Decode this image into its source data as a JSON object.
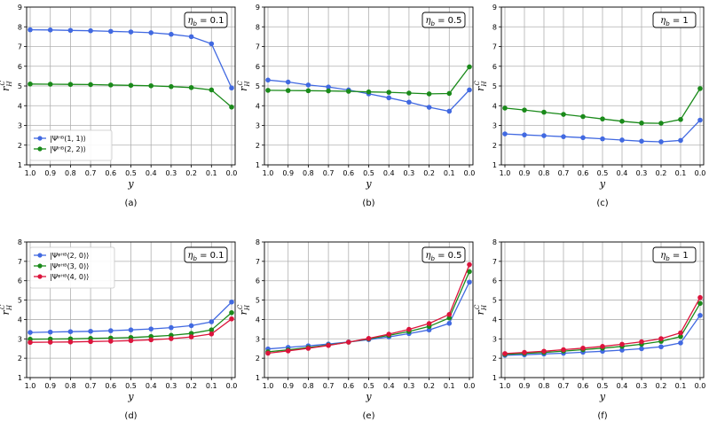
{
  "chart_data": [
    {
      "type": "line",
      "panel_label": "(a)",
      "annotation_eta_value": "0.1",
      "x": [
        1.0,
        0.9,
        0.8,
        0.7,
        0.6,
        0.5,
        0.4,
        0.3,
        0.2,
        0.1,
        0.0
      ],
      "x_tick_labels": [
        "1.0",
        "0.9",
        "0.8",
        "0.7",
        "0.6",
        "0.5",
        "0.4",
        "0.3",
        "0.2",
        "0.1",
        "0.0"
      ],
      "xlabel": "y",
      "ylabel_main": "r",
      "ylabel_sub": "H",
      "ylabel_sup": "C",
      "ylim": [
        1,
        9
      ],
      "y_ticks": [
        1,
        2,
        3,
        4,
        5,
        6,
        7,
        8,
        9
      ],
      "grid": true,
      "legend_location": "lower-left",
      "series": [
        {
          "name": "|Ψ^HB(1,1)⟩",
          "legend_label": "|Ψᴴᴮ(1, 1)⟩",
          "color": "#4169e1",
          "values": [
            7.85,
            7.84,
            7.82,
            7.8,
            7.77,
            7.74,
            7.7,
            7.62,
            7.5,
            7.14,
            4.9
          ]
        },
        {
          "name": "|Ψ^HB(2,2)⟩",
          "legend_label": "|Ψᴴᴮ(2, 2)⟩",
          "color": "#1a8a1a",
          "values": [
            5.1,
            5.09,
            5.08,
            5.07,
            5.05,
            5.03,
            5.01,
            4.97,
            4.92,
            4.8,
            3.93
          ]
        }
      ]
    },
    {
      "type": "line",
      "panel_label": "(b)",
      "annotation_eta_value": "0.5",
      "x": [
        1.0,
        0.9,
        0.8,
        0.7,
        0.6,
        0.5,
        0.4,
        0.3,
        0.2,
        0.1,
        0.0
      ],
      "x_tick_labels": [
        "1.0",
        "0.9",
        "0.8",
        "0.7",
        "0.6",
        "0.5",
        "0.4",
        "0.3",
        "0.2",
        "0.1",
        "0.0"
      ],
      "xlabel": "y",
      "ylabel_main": "r",
      "ylabel_sub": "H",
      "ylabel_sup": "C",
      "ylim": [
        1,
        9
      ],
      "y_ticks": [
        1,
        2,
        3,
        4,
        5,
        6,
        7,
        8,
        9
      ],
      "grid": true,
      "series": [
        {
          "name": "|Ψ^HB(1,1)⟩",
          "color": "#4169e1",
          "values": [
            5.3,
            5.2,
            5.05,
            4.95,
            4.8,
            4.6,
            4.4,
            4.18,
            3.92,
            3.72,
            4.8
          ]
        },
        {
          "name": "|Ψ^HB(2,2)⟩",
          "color": "#1a8a1a",
          "values": [
            4.78,
            4.77,
            4.76,
            4.75,
            4.73,
            4.7,
            4.68,
            4.64,
            4.6,
            4.62,
            5.97
          ]
        }
      ]
    },
    {
      "type": "line",
      "panel_label": "(c)",
      "annotation_eta_value": "1",
      "x": [
        1.0,
        0.9,
        0.8,
        0.7,
        0.6,
        0.5,
        0.4,
        0.3,
        0.2,
        0.1,
        0.0
      ],
      "x_tick_labels": [
        "1.0",
        "0.9",
        "0.8",
        "0.7",
        "0.6",
        "0.5",
        "0.4",
        "0.3",
        "0.2",
        "0.1",
        "0.0"
      ],
      "xlabel": "y",
      "ylabel_main": "r",
      "ylabel_sub": "H",
      "ylabel_sup": "C",
      "ylim": [
        1,
        9
      ],
      "y_ticks": [
        1,
        2,
        3,
        4,
        5,
        6,
        7,
        8,
        9
      ],
      "grid": true,
      "series": [
        {
          "name": "|Ψ^HB(1,1)⟩",
          "color": "#4169e1",
          "values": [
            2.57,
            2.52,
            2.48,
            2.43,
            2.38,
            2.32,
            2.26,
            2.2,
            2.17,
            2.24,
            3.27
          ]
        },
        {
          "name": "|Ψ^HB(2,2)⟩",
          "color": "#1a8a1a",
          "values": [
            3.88,
            3.78,
            3.67,
            3.56,
            3.45,
            3.33,
            3.21,
            3.12,
            3.11,
            3.3,
            4.87
          ]
        }
      ]
    },
    {
      "type": "line",
      "panel_label": "(d)",
      "annotation_eta_value": "0.1",
      "x": [
        1.0,
        0.9,
        0.8,
        0.7,
        0.6,
        0.5,
        0.4,
        0.3,
        0.2,
        0.1,
        0.0
      ],
      "x_tick_labels": [
        "1.0",
        "0.9",
        "0.8",
        "0.7",
        "0.6",
        "0.5",
        "0.4",
        "0.3",
        "0.2",
        "0.1",
        "0.0"
      ],
      "xlabel": "y",
      "ylabel_main": "r",
      "ylabel_sub": "H",
      "ylabel_sup": "C",
      "ylim": [
        1,
        8
      ],
      "y_ticks": [
        1,
        2,
        3,
        4,
        5,
        6,
        7,
        8
      ],
      "grid": true,
      "legend_location": "upper-left",
      "series": [
        {
          "name": "|Ψ^ψHB(2,0)⟩",
          "legend_label": "|Ψᵠᴴᴮ(2, 0)⟩",
          "color": "#4169e1",
          "values": [
            3.33,
            3.35,
            3.37,
            3.39,
            3.42,
            3.46,
            3.51,
            3.58,
            3.68,
            3.88,
            4.9
          ]
        },
        {
          "name": "|Ψ^ψHB(3,0)⟩",
          "legend_label": "|Ψᵠᴴᴮ(3, 0)⟩",
          "color": "#1a8a1a",
          "values": [
            2.98,
            2.99,
            3.0,
            3.02,
            3.04,
            3.07,
            3.12,
            3.18,
            3.28,
            3.46,
            4.35
          ]
        },
        {
          "name": "|Ψ^ψHB(4,0)⟩",
          "legend_label": "|Ψᵠᴴᴮ(4, 0)⟩",
          "color": "#dc143c",
          "values": [
            2.82,
            2.83,
            2.84,
            2.86,
            2.88,
            2.91,
            2.95,
            3.01,
            3.1,
            3.25,
            4.03
          ]
        }
      ]
    },
    {
      "type": "line",
      "panel_label": "(e)",
      "annotation_eta_value": "0.5",
      "x": [
        1.0,
        0.9,
        0.8,
        0.7,
        0.6,
        0.5,
        0.4,
        0.3,
        0.2,
        0.1,
        0.0
      ],
      "x_tick_labels": [
        "1.0",
        "0.9",
        "0.8",
        "0.7",
        "0.6",
        "0.5",
        "0.4",
        "0.3",
        "0.2",
        "0.1",
        "0.0"
      ],
      "xlabel": "y",
      "ylabel_main": "r",
      "ylabel_sub": "H",
      "ylabel_sup": "C",
      "ylim": [
        1,
        8
      ],
      "y_ticks": [
        1,
        2,
        3,
        4,
        5,
        6,
        7,
        8
      ],
      "grid": true,
      "series": [
        {
          "name": "|Ψ^ψHB(2,0)⟩",
          "color": "#4169e1",
          "values": [
            2.48,
            2.56,
            2.64,
            2.73,
            2.84,
            2.96,
            3.1,
            3.27,
            3.46,
            3.8,
            5.93
          ]
        },
        {
          "name": "|Ψ^ψHB(3,0)⟩",
          "color": "#1a8a1a",
          "values": [
            2.33,
            2.43,
            2.55,
            2.68,
            2.83,
            3.0,
            3.18,
            3.38,
            3.64,
            4.08,
            6.47
          ]
        },
        {
          "name": "|Ψ^ψHB(4,0)⟩",
          "color": "#dc143c",
          "values": [
            2.26,
            2.38,
            2.51,
            2.66,
            2.83,
            3.02,
            3.24,
            3.49,
            3.79,
            4.26,
            6.83
          ]
        }
      ]
    },
    {
      "type": "line",
      "panel_label": "(f)",
      "annotation_eta_value": "1",
      "x": [
        1.0,
        0.9,
        0.8,
        0.7,
        0.6,
        0.5,
        0.4,
        0.3,
        0.2,
        0.1,
        0.0
      ],
      "x_tick_labels": [
        "1.0",
        "0.9",
        "0.8",
        "0.7",
        "0.6",
        "0.5",
        "0.4",
        "0.3",
        "0.2",
        "0.1",
        "0.0"
      ],
      "xlabel": "y",
      "ylabel_main": "r",
      "ylabel_sub": "H",
      "ylabel_sup": "C",
      "ylim": [
        1,
        8
      ],
      "y_ticks": [
        1,
        2,
        3,
        4,
        5,
        6,
        7,
        8
      ],
      "grid": true,
      "series": [
        {
          "name": "|Ψ^ψHB(2,0)⟩",
          "color": "#4169e1",
          "values": [
            2.15,
            2.18,
            2.22,
            2.26,
            2.31,
            2.36,
            2.42,
            2.49,
            2.59,
            2.79,
            4.21
          ]
        },
        {
          "name": "|Ψ^ψHB(3,0)⟩",
          "color": "#1a8a1a",
          "values": [
            2.2,
            2.25,
            2.3,
            2.37,
            2.44,
            2.52,
            2.61,
            2.72,
            2.87,
            3.12,
            4.83
          ]
        },
        {
          "name": "|Ψ^ψHB(4,0)⟩",
          "color": "#dc143c",
          "values": [
            2.24,
            2.3,
            2.36,
            2.44,
            2.52,
            2.61,
            2.72,
            2.85,
            3.01,
            3.31,
            5.13
          ]
        }
      ]
    }
  ],
  "annotation_prefix": "η",
  "annotation_subscript": "b",
  "annotation_equals": " = "
}
